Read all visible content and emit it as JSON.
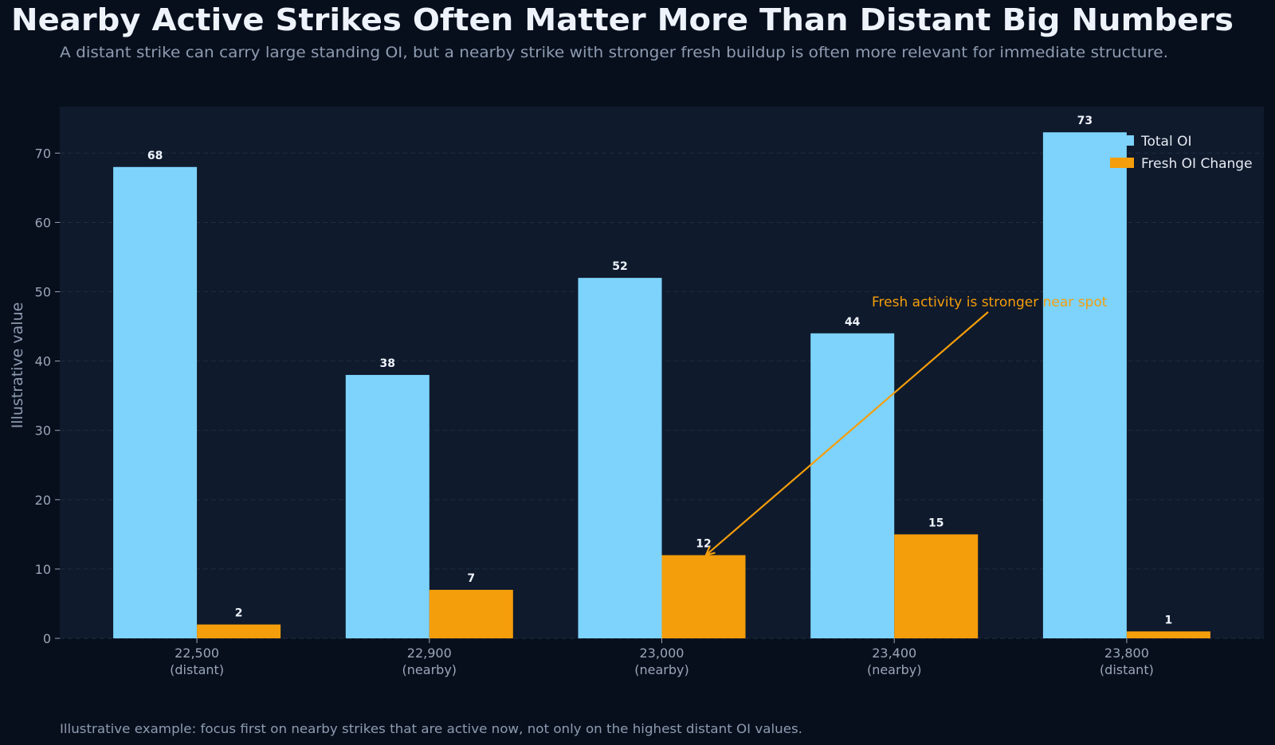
{
  "chart_data": {
    "type": "bar",
    "title": "Nearby Active Strikes Often Matter More Than Distant Big Numbers",
    "subtitle": "A distant strike can carry large standing OI, but a nearby strike with stronger fresh buildup is often more relevant for immediate structure.",
    "footer": "Illustrative example: focus first on nearby strikes that are active now, not only on the highest distant OI values.",
    "xlabel": "",
    "ylabel": "Illustrative value",
    "categories": [
      "22,500\n(distant)",
      "22,900\n(nearby)",
      "23,000\n(nearby)",
      "23,400\n(nearby)",
      "23,800\n(distant)"
    ],
    "series": [
      {
        "name": "Total OI",
        "color": "#7dd3fc",
        "values": [
          68,
          38,
          52,
          44,
          73
        ]
      },
      {
        "name": "Fresh OI Change",
        "color": "#f59e0b",
        "values": [
          2,
          7,
          12,
          15,
          1
        ]
      }
    ],
    "ylim": [
      0,
      76.7
    ],
    "yticks": [
      0,
      10,
      20,
      30,
      40,
      50,
      60,
      70
    ],
    "grid": true,
    "legend": "top-right",
    "annotation": {
      "text": "Fresh activity is stronger near spot",
      "color": "#f59e0b",
      "target_category": "23,000\n(nearby)",
      "target_series": "Fresh OI Change",
      "target_value": 12
    },
    "colors": {
      "background": "#070f1d",
      "plot_background": "#0f1a2c",
      "grid": "#1f2d42",
      "text": "#eef3fb",
      "muted": "#8e9bb0"
    }
  }
}
